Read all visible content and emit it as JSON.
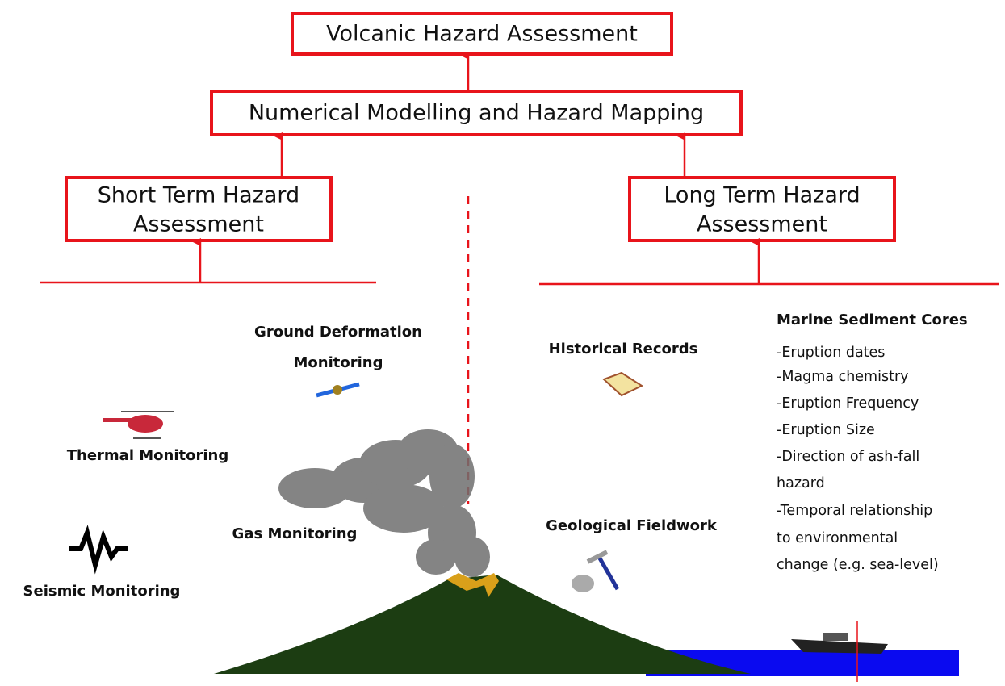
{
  "boxes": {
    "top": "Volcanic Hazard Assessment",
    "middle": "Numerical Modelling and Hazard Mapping",
    "short_term": [
      "Short Term Hazard",
      "Assessment"
    ],
    "long_term": [
      "Long Term Hazard",
      "Assessment"
    ]
  },
  "labels": {
    "ground_deformation": [
      "Ground Deformation",
      "Monitoring"
    ],
    "thermal": "Thermal Monitoring",
    "gas": "Gas Monitoring",
    "seismic": "Seismic Monitoring",
    "historical": "Historical Records",
    "geological": "Geological Fieldwork"
  },
  "marine": {
    "title": "Marine Sediment Cores",
    "lines": [
      "-Eruption dates",
      "-Magma chemistry",
      "-Eruption Frequency",
      "-Eruption Size",
      "-Direction of ash-fall",
      "hazard",
      "-Temporal relationship",
      "to environmental",
      "change (e.g. sea-level)"
    ]
  }
}
